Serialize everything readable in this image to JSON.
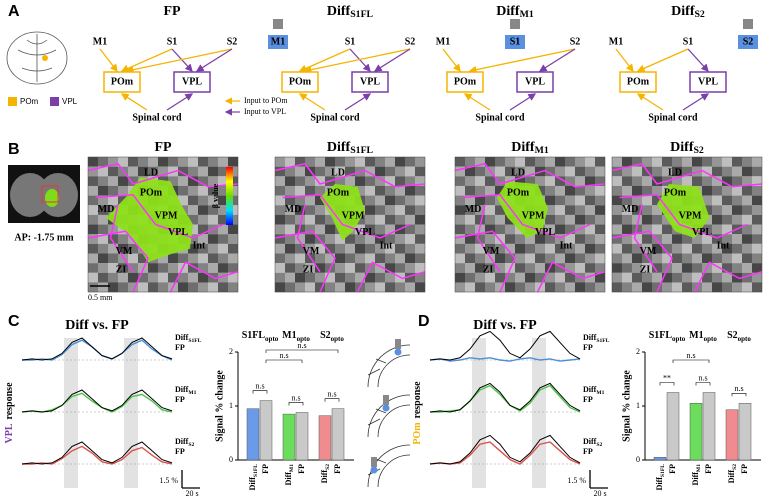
{
  "panel_labels": [
    "A",
    "B",
    "C",
    "D"
  ],
  "panel_a": {
    "titles": [
      "FP",
      {
        "main": "Diff",
        "sub": "S1FL"
      },
      {
        "main": "Diff",
        "sub": "M1"
      },
      {
        "main": "Diff",
        "sub": "S2"
      }
    ],
    "nodes": [
      "M1",
      "S1",
      "S2",
      "POm",
      "VPL",
      "Spinal cord"
    ],
    "legend": [
      "POm",
      "VPL"
    ],
    "legend_arrows": [
      "Input to POm",
      "Input to VPL"
    ],
    "colors": [
      "#f5b400",
      "#7a3fa8",
      "#5b8fe0"
    ]
  },
  "panel_b": {
    "titles": [
      "FP",
      {
        "main": "Diff",
        "sub": "S1FL"
      },
      {
        "main": "Diff",
        "sub": "M1"
      },
      {
        "main": "Diff",
        "sub": "S2"
      }
    ],
    "regions": [
      "LD",
      "POm",
      "MD",
      "VPM",
      "VPL",
      "VM",
      "Int",
      "ZI"
    ],
    "colorbar_label": "β value",
    "ap_label": "AP: -1.75 mm",
    "scale_label": "0.5 mm"
  },
  "panel_c": {
    "title": "Diff vs. FP",
    "ylabel": {
      "region": "VPL",
      "text": "response"
    },
    "region_color": "#7a3fa8",
    "fp_label": "FP",
    "scale_y": "1.5 %",
    "scale_x": "20 s",
    "rows": [
      {
        "label": {
          "main": "Diff",
          "sub": "S1FL"
        },
        "color": "#4a90d9",
        "diff": [
          0,
          0,
          0.05,
          0,
          0.25,
          0.7,
          0.9,
          0.6,
          0.2,
          0.05,
          0.3,
          0.7,
          0.9,
          0.5,
          0.2,
          0
        ],
        "fp": [
          0,
          0.05,
          0,
          0.05,
          0.3,
          0.8,
          1.0,
          0.6,
          0.2,
          0.05,
          0.3,
          0.8,
          1.0,
          0.6,
          0.2,
          0.05
        ]
      },
      {
        "label": {
          "main": "Diff",
          "sub": "M1"
        },
        "color": "#4cc44a",
        "diff": [
          0,
          0.05,
          0,
          0.1,
          0.3,
          0.7,
          0.85,
          0.5,
          0.2,
          0,
          0.25,
          0.7,
          0.8,
          0.5,
          0.1,
          0
        ],
        "fp": [
          0,
          0.05,
          0,
          0.05,
          0.3,
          0.8,
          1.0,
          0.6,
          0.2,
          0.05,
          0.3,
          0.8,
          1.0,
          0.6,
          0.2,
          0.05
        ]
      },
      {
        "label": {
          "main": "Diff",
          "sub": "S2"
        },
        "color": "#d9534f",
        "diff": [
          0,
          0,
          0.05,
          0,
          0.25,
          0.6,
          0.8,
          0.5,
          0.1,
          0,
          0.2,
          0.6,
          0.75,
          0.4,
          0.1,
          0
        ],
        "fp": [
          0,
          0.05,
          0,
          0.05,
          0.3,
          0.8,
          1.0,
          0.6,
          0.2,
          0.05,
          0.3,
          0.8,
          1.0,
          0.6,
          0.2,
          0.05
        ]
      }
    ]
  },
  "panel_d": {
    "title": "Diff vs. FP",
    "ylabel": {
      "region": "POm",
      "text": "response"
    },
    "region_color": "#f5b400",
    "fp_label": "FP",
    "scale_y": "1.5 %",
    "scale_x": "20 s",
    "rows": [
      {
        "label": {
          "main": "Diff",
          "sub": "S1FL"
        },
        "color": "#4a90d9",
        "diff": [
          0,
          0.05,
          -0.05,
          0,
          0.1,
          0.05,
          0.1,
          0,
          -0.05,
          0.05,
          0.1,
          0,
          0.05,
          -0.05,
          0,
          0.05
        ],
        "fp": [
          0,
          0.05,
          0,
          0.1,
          0.5,
          1.1,
          1.3,
          0.9,
          0.3,
          0.1,
          0.5,
          1.1,
          1.3,
          0.8,
          0.3,
          0.05
        ]
      },
      {
        "label": {
          "main": "Diff",
          "sub": "M1"
        },
        "color": "#4cc44a",
        "diff": [
          0,
          0,
          0.05,
          0.1,
          0.5,
          1.0,
          1.2,
          0.8,
          0.3,
          0.05,
          0.4,
          1.0,
          1.2,
          0.7,
          0.2,
          0
        ],
        "fp": [
          0,
          0.05,
          0,
          0.1,
          0.5,
          1.1,
          1.3,
          0.9,
          0.3,
          0.1,
          0.5,
          1.1,
          1.3,
          0.8,
          0.3,
          0.05
        ]
      },
      {
        "label": {
          "main": "Diff",
          "sub": "S2"
        },
        "color": "#d9534f",
        "diff": [
          0,
          0.05,
          0,
          0.05,
          0.4,
          0.9,
          1.0,
          0.6,
          0.2,
          0,
          0.4,
          0.9,
          1.0,
          0.6,
          0.2,
          0
        ],
        "fp": [
          0,
          0.05,
          0,
          0.1,
          0.5,
          1.1,
          1.3,
          0.9,
          0.3,
          0.1,
          0.5,
          1.1,
          1.3,
          0.8,
          0.3,
          0.05
        ]
      }
    ]
  },
  "chart_data": [
    {
      "type": "bar",
      "ylabel": "Signal % change",
      "ylim": [
        0,
        2
      ],
      "yticks": [
        0,
        1,
        2
      ],
      "across": [
        "n.s",
        "n.s"
      ],
      "groups": [
        {
          "title": {
            "main": "S1FL",
            "sub": "opto"
          },
          "labels": [
            {
              "main": "Diff",
              "sub": "S1FL"
            },
            "FP"
          ],
          "colors": [
            "#6a9be8",
            "#c9c9c9"
          ],
          "values": [
            0.95,
            1.1
          ],
          "sig": "n.s"
        },
        {
          "title": {
            "main": "M1",
            "sub": "opto"
          },
          "labels": [
            {
              "main": "Diff",
              "sub": "M1"
            },
            "FP"
          ],
          "colors": [
            "#6cdc5c",
            "#c9c9c9"
          ],
          "values": [
            0.85,
            0.88
          ],
          "sig": "n.s"
        },
        {
          "title": {
            "main": "S2",
            "sub": "opto"
          },
          "labels": [
            {
              "main": "Diff",
              "sub": "S2"
            },
            "FP"
          ],
          "colors": [
            "#f08b8f",
            "#c9c9c9"
          ],
          "values": [
            0.82,
            0.95
          ],
          "sig": "n.s"
        }
      ]
    },
    {
      "type": "bar",
      "ylabel": "Signal % change",
      "ylim": [
        0,
        2
      ],
      "yticks": [
        0,
        1,
        2
      ],
      "across": [
        "n.s"
      ],
      "groups": [
        {
          "title": {
            "main": "S1FL",
            "sub": "opto"
          },
          "labels": [
            {
              "main": "Diff",
              "sub": "S1FL"
            },
            "FP"
          ],
          "colors": [
            "#6a9be8",
            "#c9c9c9"
          ],
          "values": [
            0.05,
            1.25
          ],
          "sig": "**"
        },
        {
          "title": {
            "main": "M1",
            "sub": "opto"
          },
          "labels": [
            {
              "main": "Diff",
              "sub": "M1"
            },
            "FP"
          ],
          "colors": [
            "#6cdc5c",
            "#c9c9c9"
          ],
          "values": [
            1.05,
            1.25
          ],
          "sig": "n.s"
        },
        {
          "title": {
            "main": "S2",
            "sub": "opto"
          },
          "labels": [
            {
              "main": "Diff",
              "sub": "S2"
            },
            "FP"
          ],
          "colors": [
            "#f08b8f",
            "#c9c9c9"
          ],
          "values": [
            0.93,
            1.05
          ],
          "sig": "n.s"
        }
      ]
    }
  ]
}
